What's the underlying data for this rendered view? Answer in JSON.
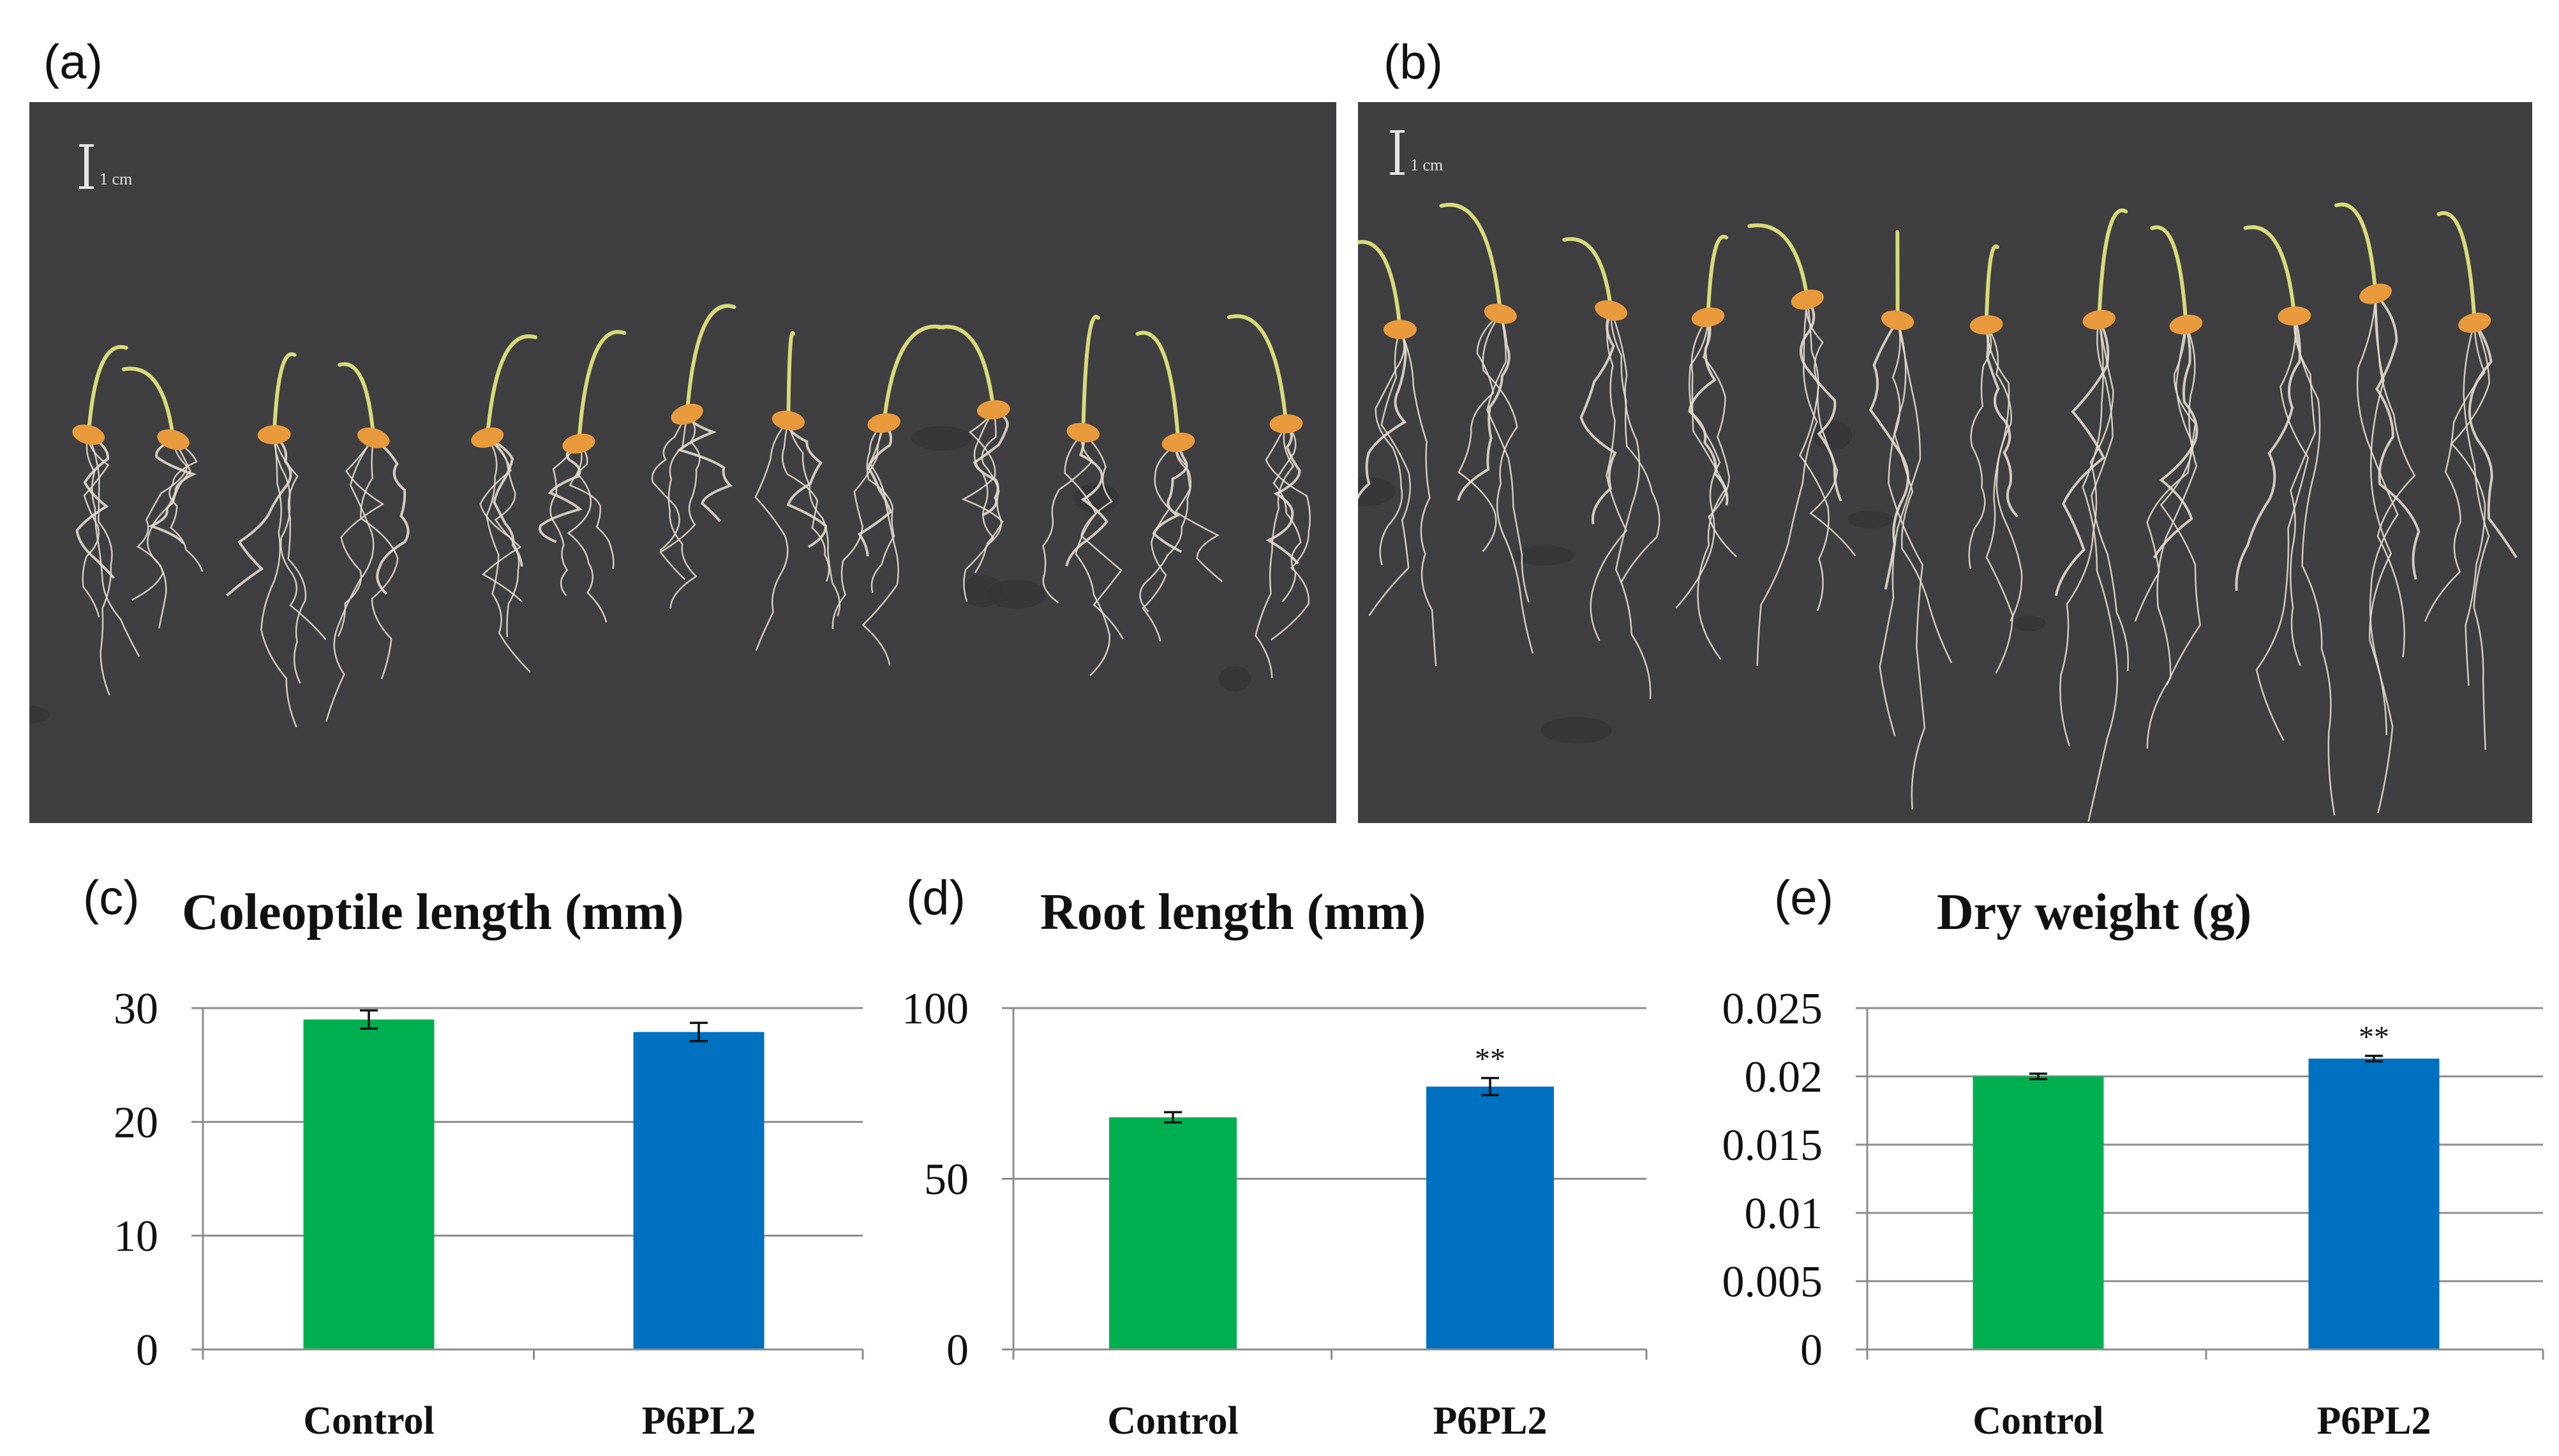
{
  "panels": {
    "a": "(a)",
    "b": "(b)",
    "c": "(c)",
    "d": "(d)",
    "e": "(e)"
  },
  "photos": {
    "scale_text": "1 cm",
    "background_color": "#3f3f41",
    "left_seedlings": 13,
    "right_seedlings": 12
  },
  "chart_data": [
    {
      "type": "bar",
      "title": "Coleoptile length (mm)",
      "categories": [
        "Control",
        "P6PL2"
      ],
      "values": [
        29,
        27.9
      ],
      "errors": [
        0.8,
        0.8
      ],
      "colors": [
        "#00b050",
        "#0070c0"
      ],
      "ylim": [
        0,
        30
      ],
      "yticks": [
        "0",
        "10",
        "20",
        "30"
      ],
      "ytick_values": [
        0,
        10,
        20,
        30
      ],
      "significance": [
        "",
        ""
      ],
      "grid": true
    },
    {
      "type": "bar",
      "title": "Root length (mm)",
      "categories": [
        "Control",
        "P6PL2"
      ],
      "values": [
        68,
        77
      ],
      "errors": [
        1.5,
        2.5
      ],
      "colors": [
        "#00b050",
        "#0070c0"
      ],
      "ylim": [
        0,
        100
      ],
      "yticks": [
        "0",
        "50",
        "100"
      ],
      "ytick_values": [
        0,
        50,
        100
      ],
      "significance": [
        "",
        "**"
      ],
      "grid": true
    },
    {
      "type": "bar",
      "title": "Dry weight (g)",
      "categories": [
        "Control",
        "P6PL2"
      ],
      "values": [
        0.02,
        0.0213
      ],
      "errors": [
        0.0002,
        0.0002
      ],
      "colors": [
        "#00b050",
        "#0070c0"
      ],
      "ylim": [
        0,
        0.025
      ],
      "yticks": [
        "0",
        "0.005",
        "0.01",
        "0.015",
        "0.02",
        "0.025"
      ],
      "ytick_values": [
        0,
        0.005,
        0.01,
        0.015,
        0.02,
        0.025
      ],
      "significance": [
        "",
        "**"
      ],
      "grid": true
    }
  ]
}
